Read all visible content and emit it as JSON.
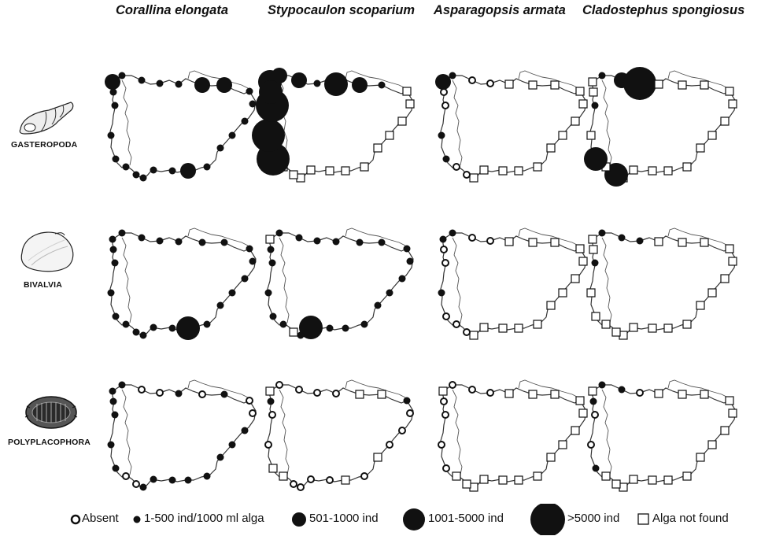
{
  "columns": [
    {
      "species": "Corallina elongata"
    },
    {
      "species": "Stypocaulon scoparium"
    },
    {
      "species": "Asparagopsis armata"
    },
    {
      "species": "Cladostephus spongiosus"
    }
  ],
  "rows": [
    {
      "group": "GASTEROPODA",
      "icon": "gastropod-shell-icon"
    },
    {
      "group": "BIVALVIA",
      "icon": "bivalve-shell-icon"
    },
    {
      "group": "POLYPLACOPHORA",
      "icon": "chiton-icon"
    }
  ],
  "legend": {
    "absent": "Absent",
    "c1": "1-500 ind/1000 ml alga",
    "c2": "501-1000 ind",
    "c3": "1001-5000 ind",
    "c4": ">5000 ind",
    "not_found": "Alga not found"
  },
  "colors": {
    "ink": "#111111",
    "coast": "#333333",
    "border": "#555555"
  },
  "site_symbols": [
    [
      "c2",
      "c1",
      "c1",
      "c1",
      "c1",
      "c2",
      "c2",
      "c1",
      "c1",
      "c1",
      "c1",
      "c1",
      "c1",
      "c2",
      "c1",
      "c1",
      "c1",
      "c1",
      "c1",
      "c1",
      "c1",
      "c1",
      "c1"
    ],
    [
      "c3",
      "c2",
      "c2",
      "c1",
      "c3",
      "c2",
      "c1",
      "n",
      "n",
      "n",
      "n",
      "n",
      "n",
      "n",
      "n",
      "n",
      "n",
      "n",
      "n",
      "c4",
      "c4",
      "c4",
      "c3"
    ],
    [
      "c2",
      "c1",
      "o",
      "o",
      "n",
      "n",
      "n",
      "n",
      "n",
      "n",
      "n",
      "n",
      "n",
      "n",
      "n",
      "n",
      "n",
      "o",
      "o",
      "c1",
      "c1",
      "o",
      "o"
    ],
    [
      "n",
      "c1",
      "c2",
      "c4",
      "n",
      "n",
      "n",
      "n",
      "n",
      "n",
      "n",
      "n",
      "n",
      "n",
      "n",
      "n",
      "n",
      "c3",
      "n",
      "c3",
      "n",
      "c1",
      "n"
    ],
    [
      "c1",
      "c1",
      "c1",
      "c1",
      "c1",
      "c1",
      "c1",
      "c1",
      "c1",
      "c1",
      "c1",
      "c1",
      "c1",
      "c3",
      "c1",
      "c1",
      "c1",
      "c1",
      "c1",
      "c1",
      "c1",
      "c1",
      "c1"
    ],
    [
      "n",
      "c1",
      "c1",
      "c1",
      "c1",
      "c1",
      "c1",
      "c1",
      "c1",
      "c1",
      "c1",
      "c1",
      "c1",
      "c1",
      "c1",
      "c3",
      "c1",
      "n",
      "c1",
      "c1",
      "c1",
      "c1",
      "c1"
    ],
    [
      "c1",
      "c1",
      "o",
      "o",
      "n",
      "n",
      "n",
      "n",
      "n",
      "n",
      "n",
      "n",
      "n",
      "n",
      "n",
      "n",
      "n",
      "o",
      "o",
      "o",
      "c1",
      "o",
      "o"
    ],
    [
      "n",
      "c1",
      "c1",
      "c1",
      "n",
      "n",
      "n",
      "n",
      "n",
      "n",
      "n",
      "n",
      "n",
      "n",
      "n",
      "n",
      "n",
      "n",
      "n",
      "n",
      "n",
      "c1",
      "n"
    ],
    [
      "c1",
      "c1",
      "o",
      "o",
      "c1",
      "o",
      "c1",
      "o",
      "o",
      "c1",
      "c1",
      "c1",
      "c1",
      "c1",
      "c1",
      "c1",
      "c1",
      "o",
      "o",
      "c1",
      "c1",
      "c1",
      "c1"
    ],
    [
      "n",
      "o",
      "o",
      "o",
      "o",
      "n",
      "n",
      "c1",
      "o",
      "o",
      "o",
      "n",
      "o",
      "n",
      "o",
      "o",
      "o",
      "o",
      "n",
      "n",
      "o",
      "o",
      "c1"
    ],
    [
      "n",
      "o",
      "o",
      "o",
      "n",
      "n",
      "n",
      "n",
      "n",
      "n",
      "n",
      "n",
      "n",
      "n",
      "n",
      "n",
      "n",
      "n",
      "n",
      "o",
      "o",
      "o",
      "o"
    ],
    [
      "n",
      "c1",
      "c1",
      "o",
      "n",
      "n",
      "n",
      "n",
      "n",
      "n",
      "n",
      "n",
      "n",
      "n",
      "n",
      "n",
      "n",
      "n",
      "n",
      "c1",
      "o",
      "o",
      "c1"
    ]
  ]
}
